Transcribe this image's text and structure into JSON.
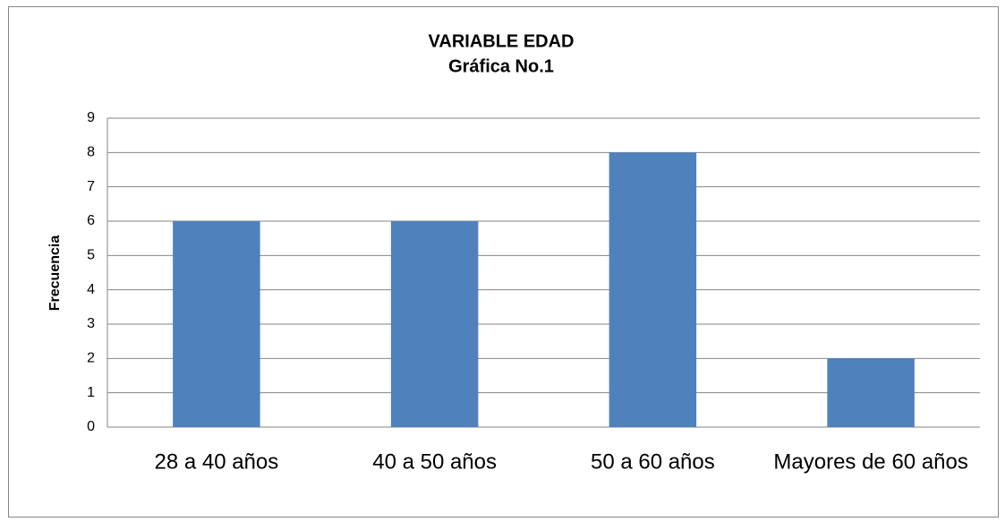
{
  "chart_data": {
    "type": "bar",
    "title": "VARIABLE EDAD",
    "subtitle": "Gráfica No.1",
    "y_label": "Frecuencia",
    "categories": [
      "28 a 40 años",
      "40 a 50 años",
      "50 a 60 años",
      "Mayores de 60 años"
    ],
    "values": [
      6,
      6,
      8,
      2
    ],
    "color": "#4f81bd",
    "ylim": [
      0,
      9
    ],
    "yticks": [
      0,
      1,
      2,
      3,
      4,
      5,
      6,
      7,
      8,
      9
    ],
    "grid": true
  }
}
